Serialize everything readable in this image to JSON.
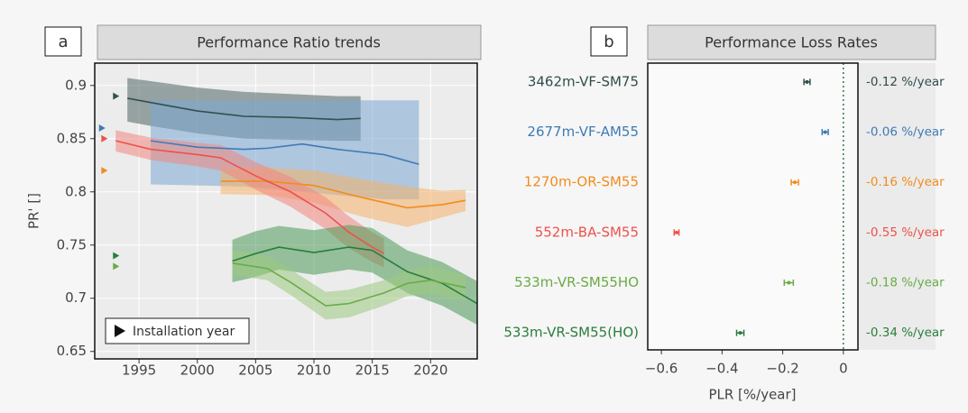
{
  "chart_data": [
    {
      "type": "band-line",
      "panel": "a",
      "title": "Performance Ratio trends",
      "ylabel": "PR' []",
      "legend_label": "Installation year",
      "xlim": [
        1991.2,
        2024
      ],
      "ylim": [
        0.643,
        0.921
      ],
      "xticks": [
        1995,
        2000,
        2005,
        2010,
        2015,
        2020
      ],
      "yticks": [
        0.65,
        0.7,
        0.75,
        0.8,
        0.85,
        0.9
      ],
      "grid": true,
      "series": [
        {
          "color": "#34504e",
          "band_color": "#4f6664",
          "x": [
            1994,
            1996,
            2000,
            2004,
            2008,
            2012,
            2014
          ],
          "values": [
            0.888,
            0.884,
            0.876,
            0.871,
            0.87,
            0.868,
            0.869
          ],
          "lower": [
            0.866,
            0.862,
            0.855,
            0.85,
            0.849,
            0.848,
            0.848
          ],
          "upper": [
            0.907,
            0.904,
            0.898,
            0.894,
            0.892,
            0.89,
            0.89
          ],
          "install_x": 1993,
          "install_y": 0.89
        },
        {
          "color": "#3f7ab5",
          "band_color": "#7ba8d4",
          "x": [
            1996,
            2000,
            2004,
            2006,
            2009,
            2012,
            2016,
            2019
          ],
          "values": [
            0.848,
            0.842,
            0.84,
            0.841,
            0.845,
            0.84,
            0.835,
            0.826
          ],
          "lower": [
            0.807,
            0.806,
            0.805,
            0.803,
            0.8,
            0.797,
            0.793,
            0.793
          ],
          "upper": [
            0.886,
            0.886,
            0.886,
            0.886,
            0.886,
            0.886,
            0.886,
            0.886
          ],
          "install_x": 1991.8,
          "install_y": 0.86
        },
        {
          "color": "#f28c1e",
          "band_color": "#f6b36a",
          "x": [
            2002,
            2006,
            2010,
            2014,
            2018,
            2021,
            2023
          ],
          "values": [
            0.81,
            0.81,
            0.806,
            0.795,
            0.785,
            0.788,
            0.792
          ],
          "lower": [
            0.798,
            0.797,
            0.79,
            0.777,
            0.767,
            0.776,
            0.782
          ],
          "upper": [
            0.822,
            0.823,
            0.82,
            0.812,
            0.805,
            0.801,
            0.802
          ],
          "install_x": 1992,
          "install_y": 0.82
        },
        {
          "color": "#ee5149",
          "band_color": "#f3877f",
          "x": [
            1993,
            1996,
            2000,
            2002,
            2005,
            2008,
            2011,
            2013,
            2015,
            2016
          ],
          "values": [
            0.848,
            0.84,
            0.835,
            0.832,
            0.815,
            0.8,
            0.78,
            0.762,
            0.748,
            0.742
          ],
          "lower": [
            0.838,
            0.83,
            0.824,
            0.82,
            0.802,
            0.786,
            0.765,
            0.747,
            0.734,
            0.729
          ],
          "upper": [
            0.858,
            0.851,
            0.846,
            0.844,
            0.828,
            0.814,
            0.795,
            0.777,
            0.762,
            0.756
          ],
          "install_x": 1992,
          "install_y": 0.85
        },
        {
          "color": "#2a7d3c",
          "band_color": "#4c9a57",
          "x": [
            2003,
            2005,
            2007,
            2010,
            2013,
            2015,
            2018,
            2021,
            2024
          ],
          "values": [
            0.735,
            0.742,
            0.748,
            0.743,
            0.748,
            0.745,
            0.725,
            0.714,
            0.695
          ],
          "lower": [
            0.715,
            0.72,
            0.727,
            0.722,
            0.727,
            0.724,
            0.705,
            0.693,
            0.675
          ],
          "upper": [
            0.755,
            0.763,
            0.768,
            0.764,
            0.769,
            0.766,
            0.745,
            0.734,
            0.716
          ],
          "install_x": 1993,
          "install_y": 0.74
        },
        {
          "color": "#6aab45",
          "band_color": "#9ccb7f",
          "x": [
            2003,
            2006,
            2008,
            2011,
            2013,
            2016,
            2018,
            2020,
            2023
          ],
          "values": [
            0.733,
            0.728,
            0.715,
            0.693,
            0.695,
            0.705,
            0.714,
            0.717,
            0.71
          ],
          "lower": [
            0.722,
            0.717,
            0.703,
            0.68,
            0.682,
            0.693,
            0.702,
            0.704,
            0.698
          ],
          "upper": [
            0.745,
            0.74,
            0.727,
            0.706,
            0.708,
            0.717,
            0.726,
            0.73,
            0.722
          ],
          "install_x": 1993,
          "install_y": 0.73
        }
      ]
    },
    {
      "type": "errorbar",
      "panel": "b",
      "title": "Performance Loss Rates",
      "xlabel": "PLR [%/year]",
      "categories": [
        "3462m-VF-SM75",
        "2677m-VF-AM55",
        "1270m-OR-SM55",
        "552m-BA-SM55",
        "533m-VR-SM55HO",
        "533m-VR-SM55(HO)"
      ],
      "colors": [
        "#2f4d4b",
        "#3f7ab5",
        "#f28c1e",
        "#ee5149",
        "#6aab45",
        "#2a7d3c"
      ],
      "values": [
        -0.12,
        -0.06,
        -0.16,
        -0.55,
        -0.18,
        -0.34
      ],
      "errors": [
        0.01,
        0.01,
        0.012,
        0.008,
        0.015,
        0.012
      ],
      "value_labels": [
        "-0.12 %/year",
        "-0.06 %/year",
        "-0.16 %/year",
        "-0.55 %/year",
        "-0.18 %/year",
        "-0.34 %/year"
      ],
      "xlim": [
        -0.645,
        0.048
      ],
      "xticks": [
        {
          "value": -0.6,
          "label": "−0.6"
        },
        {
          "value": -0.4,
          "label": "−0.4"
        },
        {
          "value": -0.2,
          "label": "−0.2"
        },
        0
      ],
      "reference_line": 0
    }
  ]
}
